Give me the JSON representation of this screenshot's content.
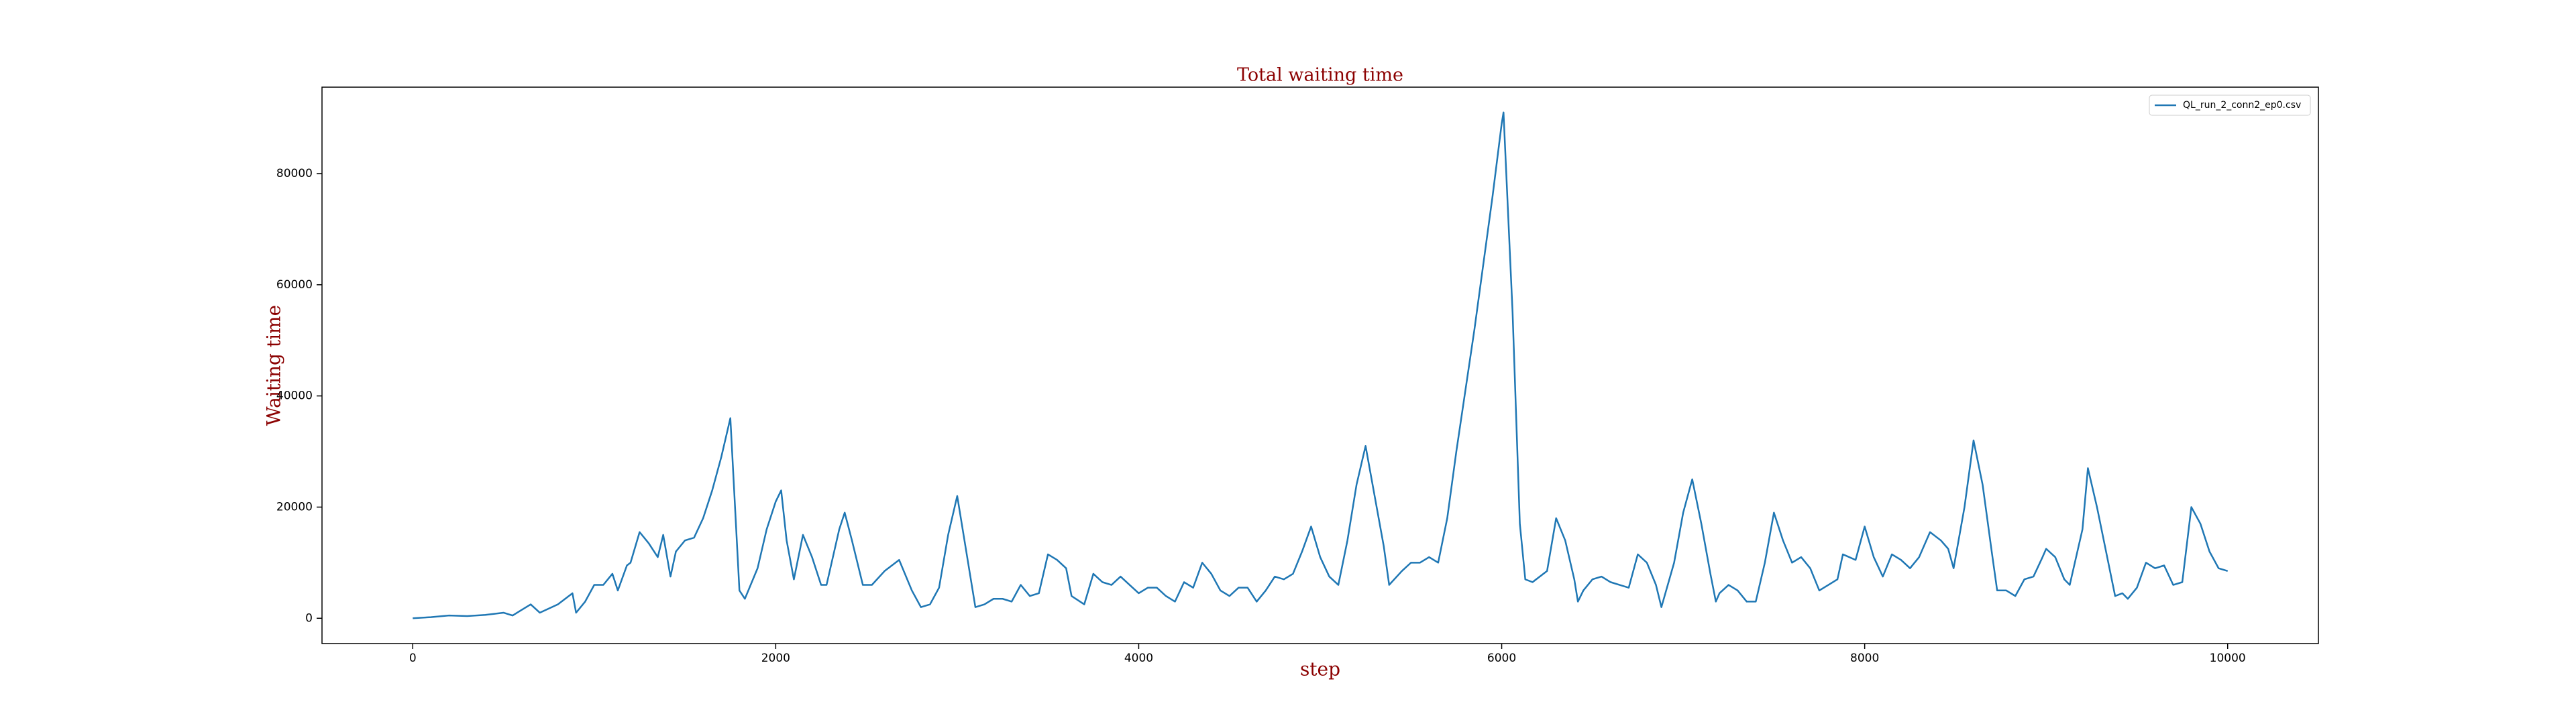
{
  "chart_data": {
    "type": "line",
    "title": "Total waiting time",
    "x_label": "step",
    "y_label": "Waiting time",
    "x": [
      0,
      100,
      200,
      300,
      400,
      500,
      550,
      600,
      650,
      700,
      800,
      880,
      900,
      950,
      1000,
      1050,
      1100,
      1130,
      1180,
      1200,
      1250,
      1300,
      1350,
      1380,
      1420,
      1450,
      1500,
      1550,
      1600,
      1650,
      1700,
      1750,
      1800,
      1830,
      1900,
      1950,
      2000,
      2030,
      2060,
      2100,
      2150,
      2200,
      2250,
      2280,
      2350,
      2380,
      2420,
      2480,
      2530,
      2600,
      2680,
      2750,
      2800,
      2850,
      2900,
      2950,
      3000,
      3050,
      3100,
      3150,
      3200,
      3250,
      3300,
      3350,
      3400,
      3450,
      3500,
      3550,
      3600,
      3630,
      3700,
      3750,
      3800,
      3850,
      3900,
      3950,
      4000,
      4050,
      4100,
      4150,
      4200,
      4250,
      4300,
      4350,
      4400,
      4450,
      4500,
      4550,
      4600,
      4650,
      4700,
      4750,
      4800,
      4850,
      4900,
      4950,
      5000,
      5050,
      5100,
      5150,
      5200,
      5250,
      5300,
      5350,
      5380,
      5450,
      5500,
      5550,
      5600,
      5650,
      5700,
      5750,
      5800,
      5850,
      5900,
      5950,
      6000,
      6010,
      6060,
      6100,
      6130,
      6170,
      6250,
      6300,
      6350,
      6400,
      6420,
      6450,
      6500,
      6550,
      6600,
      6650,
      6700,
      6750,
      6800,
      6850,
      6880,
      6950,
      7000,
      7050,
      7100,
      7150,
      7180,
      7200,
      7250,
      7300,
      7350,
      7400,
      7450,
      7500,
      7550,
      7600,
      7650,
      7700,
      7750,
      7800,
      7850,
      7880,
      7950,
      8000,
      8050,
      8100,
      8150,
      8200,
      8250,
      8300,
      8360,
      8420,
      8460,
      8490,
      8550,
      8600,
      8650,
      8700,
      8730,
      8780,
      8830,
      8880,
      8930,
      8980,
      9000,
      9050,
      9100,
      9130,
      9200,
      9230,
      9280,
      9330,
      9380,
      9420,
      9450,
      9500,
      9550,
      9600,
      9650,
      9700,
      9750,
      9800,
      9850,
      9900,
      9950,
      10000
    ],
    "series": [
      {
        "name": "QL_run_2_conn2_ep0.csv",
        "color": "#1f77b4",
        "values": [
          0,
          200,
          500,
          400,
          600,
          1000,
          500,
          1500,
          2500,
          1000,
          2500,
          4500,
          1000,
          3000,
          6000,
          6000,
          8000,
          5000,
          9500,
          10000,
          15500,
          13500,
          11000,
          15000,
          7500,
          12000,
          14000,
          14500,
          18000,
          23000,
          29000,
          36000,
          5000,
          3500,
          9000,
          16000,
          21000,
          23000,
          14000,
          7000,
          15000,
          11000,
          6000,
          6000,
          16000,
          19000,
          14000,
          6000,
          6000,
          8500,
          10500,
          5000,
          2000,
          2500,
          5500,
          15000,
          22000,
          12000,
          2000,
          2500,
          3500,
          3500,
          3000,
          6000,
          4000,
          4500,
          11500,
          10500,
          9000,
          4000,
          2500,
          8000,
          6500,
          6000,
          7500,
          6000,
          4500,
          5500,
          5500,
          4000,
          3000,
          6500,
          5500,
          10000,
          8000,
          5000,
          4000,
          5500,
          5500,
          3000,
          5000,
          7500,
          7000,
          8000,
          12000,
          16500,
          11000,
          7500,
          6000,
          14000,
          24000,
          31000,
          22000,
          13000,
          6000,
          8500,
          10000,
          10000,
          11000,
          10000,
          18000,
          30000,
          41000,
          52000,
          64000,
          76000,
          89000,
          91000,
          55000,
          17000,
          7000,
          6500,
          8500,
          18000,
          14000,
          7000,
          3000,
          5000,
          7000,
          7500,
          6500,
          6000,
          5500,
          11500,
          10000,
          6000,
          2000,
          10000,
          19000,
          25000,
          17000,
          8000,
          3000,
          4500,
          6000,
          5000,
          3000,
          3000,
          10000,
          19000,
          14000,
          10000,
          11000,
          9000,
          5000,
          6000,
          7000,
          11500,
          10500,
          16500,
          11000,
          7500,
          11500,
          10500,
          9000,
          11000,
          15500,
          14000,
          12500,
          9000,
          20000,
          32000,
          24000,
          12000,
          5000,
          5000,
          4000,
          7000,
          7500,
          11000,
          12500,
          11000,
          7000,
          6000,
          16000,
          27000,
          20000,
          12000,
          4000,
          4500,
          3500,
          5500,
          10000,
          9000,
          9500,
          6000,
          6500,
          20000,
          17000,
          12000,
          9000,
          8500
        ]
      }
    ],
    "xlim": [
      -500,
      10500
    ],
    "ylim": [
      -4550,
      95550
    ],
    "xticks": [
      0,
      2000,
      4000,
      6000,
      8000,
      10000
    ],
    "yticks": [
      0,
      20000,
      40000,
      60000,
      80000
    ],
    "legend": "upper right"
  }
}
